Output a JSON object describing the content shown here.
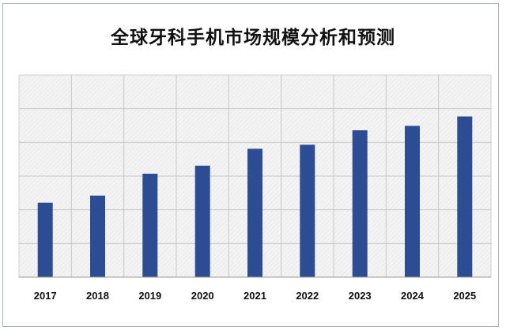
{
  "chart_data": {
    "type": "bar",
    "title": "全球牙科手机市场规模分析和预测",
    "categories": [
      "2017",
      "2018",
      "2019",
      "2020",
      "2021",
      "2022",
      "2023",
      "2024",
      "2025"
    ],
    "values": [
      2.21,
      2.42,
      3.07,
      3.31,
      3.81,
      3.93,
      4.36,
      4.49,
      4.77
    ],
    "xlabel": "",
    "ylabel": "",
    "ylim": [
      0,
      6
    ],
    "grid": true,
    "colors": {
      "bar": "#2c4c93",
      "grid": "#c8c8c8",
      "plot_bg": "#f2f2f2",
      "frame": "#a9b3c4"
    }
  }
}
